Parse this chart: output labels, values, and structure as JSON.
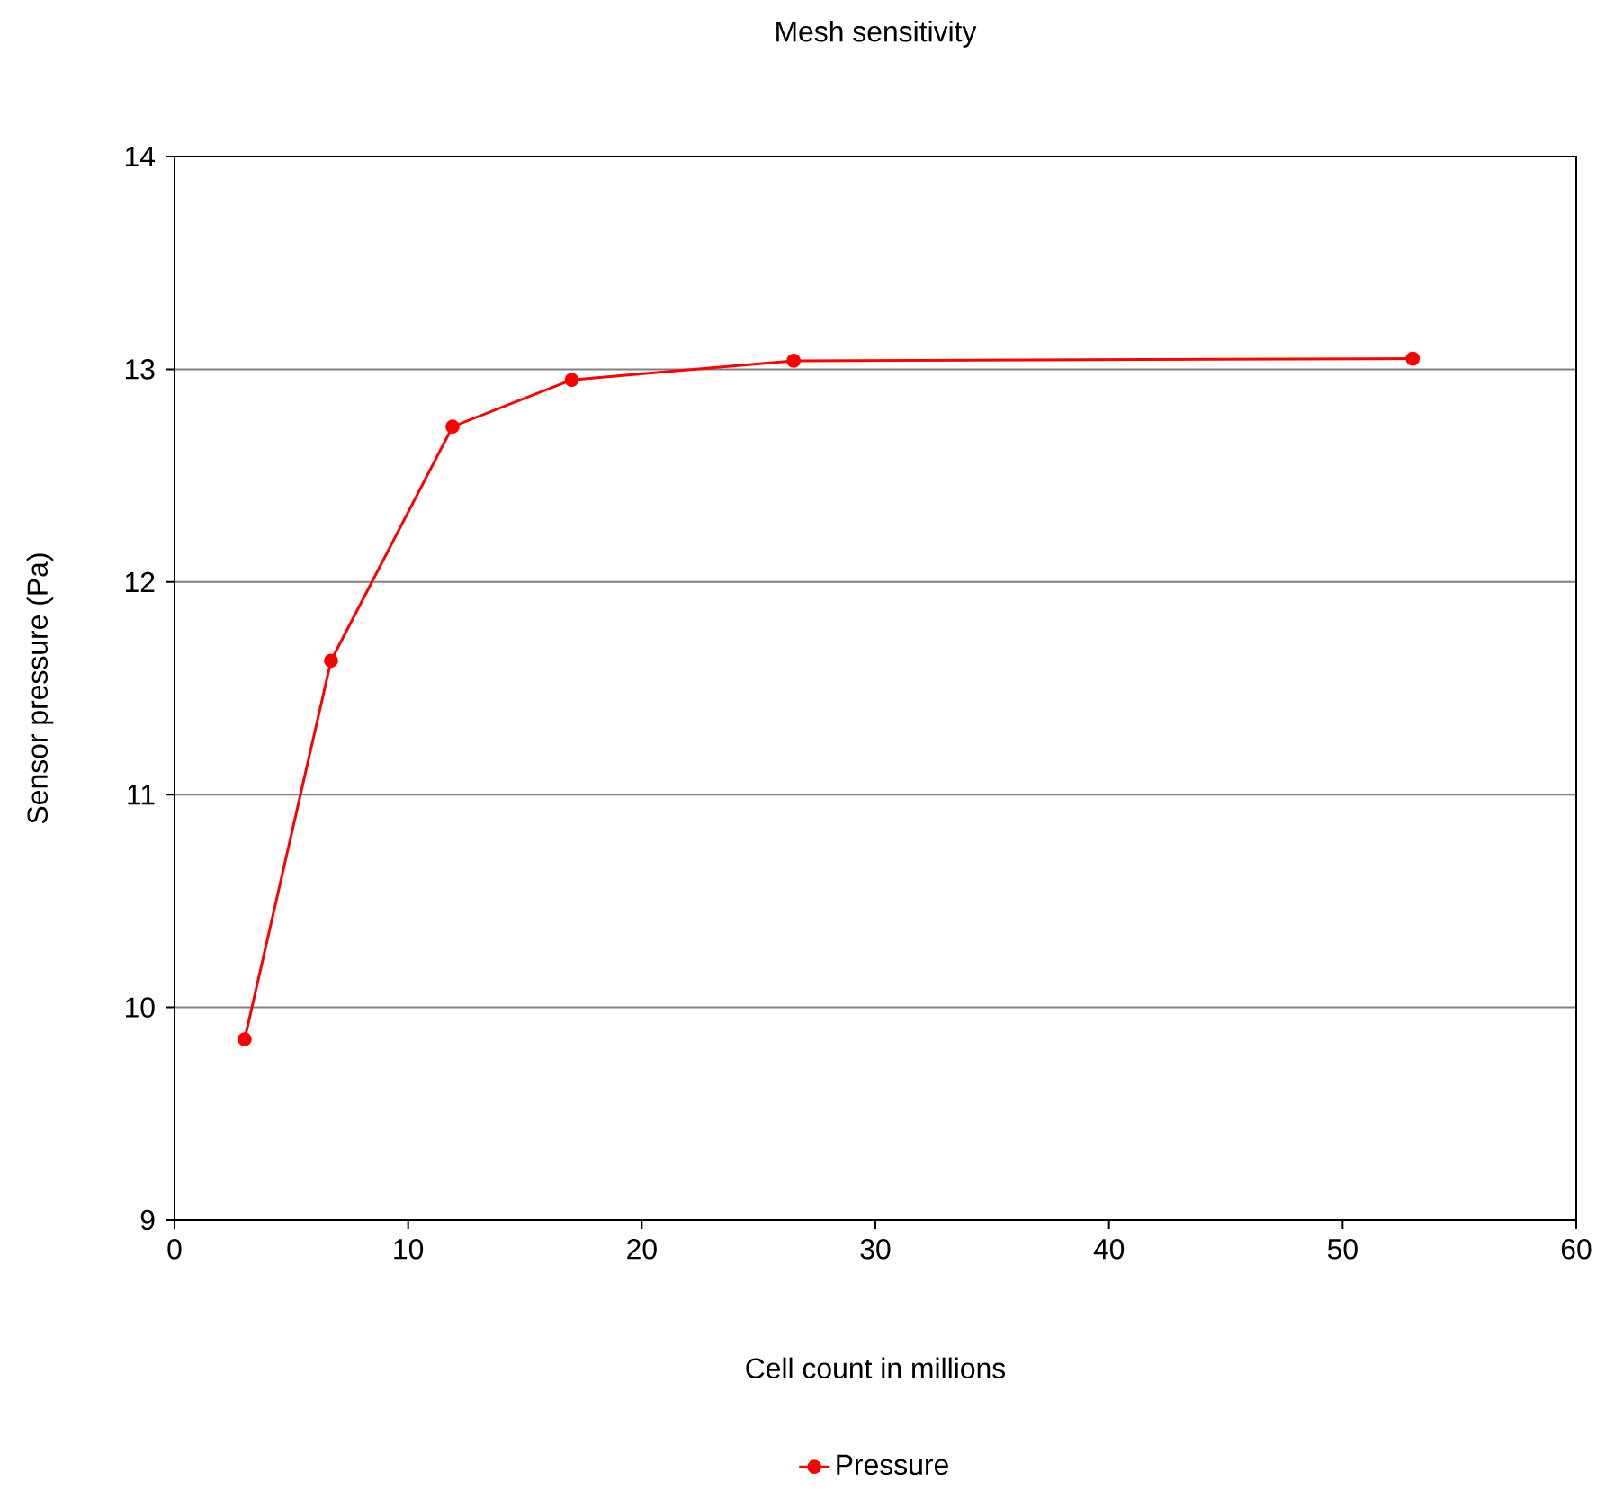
{
  "chart_data": {
    "type": "line",
    "title": "Mesh sensitivity",
    "xlabel": "Cell count in millions",
    "ylabel": "Sensor pressure (Pa)",
    "series": [
      {
        "name": "Pressure",
        "color": "#ff0000",
        "x": [
          3.0,
          6.7,
          11.9,
          17.0,
          26.5,
          53.0
        ],
        "values": [
          9.85,
          11.63,
          12.73,
          12.95,
          13.04,
          13.05
        ]
      }
    ],
    "xlim": [
      0,
      60
    ],
    "xticks": [
      0,
      10,
      20,
      30,
      40,
      50,
      60
    ],
    "ylim": [
      9,
      14
    ],
    "yticks": [
      9,
      10,
      11,
      12,
      13,
      14
    ],
    "grid": "y",
    "legend": "bottom",
    "marker": "circle",
    "line_style": "solid"
  }
}
